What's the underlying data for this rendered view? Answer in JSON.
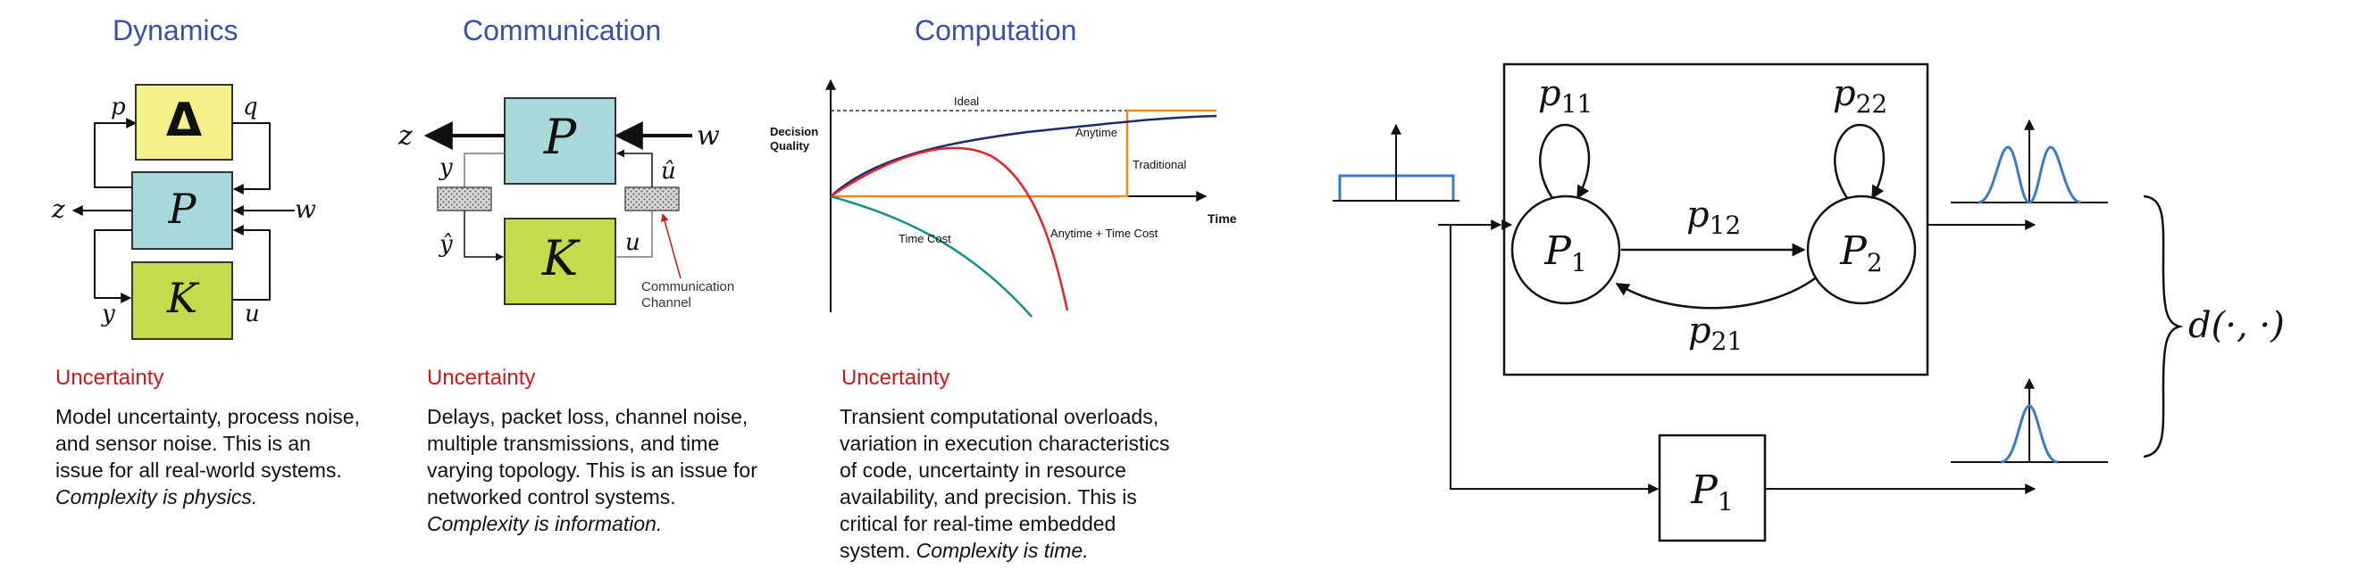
{
  "dynamics": {
    "heading": "Dynamics",
    "delta_symbol": "Δ",
    "p_label": "p",
    "q_label": "q",
    "P_label": "P",
    "K_label": "K",
    "z_label": "z",
    "w_label": "w",
    "y_label": "y",
    "u_label": "u",
    "uncertainty_title": "Uncertainty",
    "text_lines": [
      "Model uncertainty, process noise,",
      "and sensor noise. This is an",
      "issue for all real-world systems."
    ],
    "italic_line": "Complexity is physics."
  },
  "communication": {
    "heading": "Communication",
    "P_label": "P",
    "K_label": "K",
    "z_label": "z",
    "w_label": "w",
    "y_label": "y",
    "u_label": "u",
    "yhat_label": "ŷ",
    "uhat_label": "û",
    "channel_label_line1": "Communication",
    "channel_label_line2": "Channel",
    "uncertainty_title": "Uncertainty",
    "text_lines": [
      "Delays, packet loss, channel noise,",
      "multiple transmissions, and time",
      "varying topology. This is an issue for",
      "networked control systems."
    ],
    "italic_line": "Complexity is information."
  },
  "computation": {
    "heading": "Computation",
    "uncertainty_title": "Uncertainty",
    "text_lines": [
      "Transient computational overloads,",
      "variation in execution characteristics",
      "of code, uncertainty in resource",
      "availability, and precision. This is",
      "critical for real-time embedded"
    ],
    "last_line_plain": "system. ",
    "italic_line": "Complexity is time.",
    "chart_data": {
      "type": "line",
      "xlabel": "Time",
      "ylabel": "Decision Quality",
      "annotation_ideal": "Ideal",
      "series": [
        {
          "name": "Anytime",
          "color": "#1e2a6e"
        },
        {
          "name": "Traditional",
          "color": "#f28a1b"
        },
        {
          "name": "Time Cost",
          "color": "#1a8f8a"
        },
        {
          "name": "Anytime + Time Cost",
          "color": "#e0262b"
        }
      ]
    }
  },
  "markov": {
    "p11": "p",
    "p11_sub": "11",
    "p22": "p",
    "p22_sub": "22",
    "p12": "p",
    "p12_sub": "12",
    "p21": "p",
    "p21_sub": "21",
    "P1": "P",
    "P1_sub": "1",
    "P2": "P",
    "P2_sub": "2",
    "P1_box": "P",
    "P1_box_sub": "1",
    "distance": "d(·, ·)",
    "accent_color": "#3a7cc4"
  }
}
